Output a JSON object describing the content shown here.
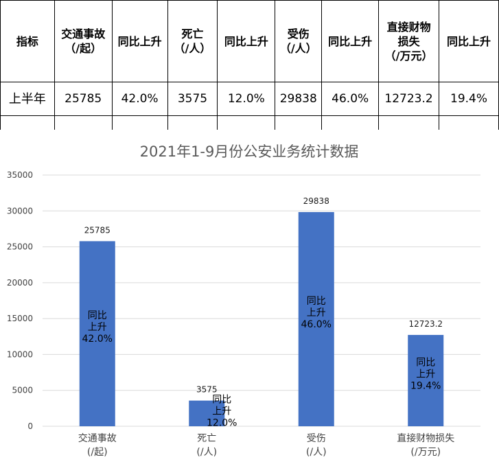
{
  "table": {
    "headers": [
      "指标",
      "交通事故\n（/起）",
      "同比上升",
      "死亡\n（/人）",
      "同比上升",
      "受伤\n（/人）",
      "同比上升",
      "直接财物\n损失\n（/万元）",
      "同比上升"
    ],
    "row": [
      "上半年",
      "25785",
      "42.0%",
      "3575",
      "12.0%",
      "29838",
      "46.0%",
      "12723.2",
      "19.4%"
    ]
  },
  "chart_data": {
    "type": "bar",
    "title": "2021年1-9月份公安业务统计数据",
    "categories": [
      "交通事故\n(/起)",
      "死亡\n(/人)",
      "受伤\n(/人)",
      "直接财物损失\n(/万元)"
    ],
    "values": [
      25785,
      3575,
      29838,
      12723.2
    ],
    "value_labels": [
      "25785",
      "3575",
      "29838",
      "12723.2"
    ],
    "inner_labels": [
      [
        "同比",
        "上升",
        "42.0%"
      ],
      [
        "同比",
        "上升",
        "12.0%"
      ],
      [
        "同比",
        "上升",
        "46.0%"
      ],
      [
        "同比",
        "上升",
        "19.4%"
      ]
    ],
    "yticks": [
      "0",
      "5000",
      "10000",
      "15000",
      "20000",
      "25000",
      "30000",
      "35000"
    ],
    "ylim": [
      0,
      35000
    ],
    "grid": true,
    "legend": "none",
    "colors": {
      "bar": "#4472c4",
      "grid": "#d9d9d9",
      "title": "#595959"
    }
  }
}
